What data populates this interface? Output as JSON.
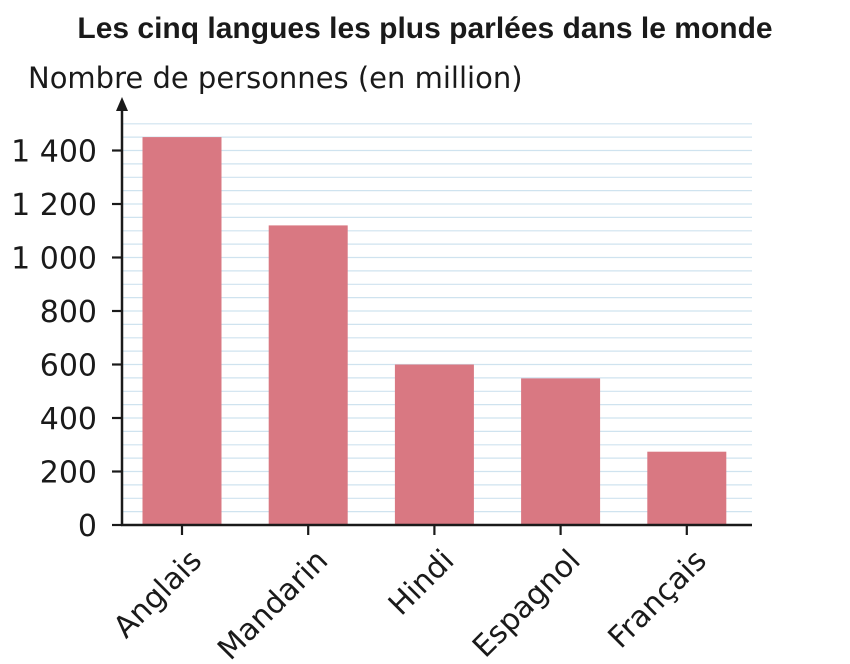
{
  "chart_data": {
    "type": "bar",
    "title": "Les cinq langues les plus parlées dans le monde",
    "ylabel": "Nombre de personnes (en million)",
    "xlabel": "",
    "categories": [
      "Anglais",
      "Mandarin",
      "Hindi",
      "Espagnol",
      "Français"
    ],
    "values": [
      1450,
      1120,
      600,
      548,
      274
    ],
    "ylim": [
      0,
      1450
    ],
    "yticks": [
      0,
      200,
      400,
      600,
      800,
      1000,
      1200,
      1400
    ],
    "ytick_labels": [
      "0",
      "200",
      "400",
      "600",
      "800",
      "1 000",
      "1 200",
      "1 400"
    ],
    "grid": true,
    "colors": {
      "bar": "#d97882",
      "grid": "#cfe3ef",
      "axis": "#1a1a1a"
    }
  }
}
